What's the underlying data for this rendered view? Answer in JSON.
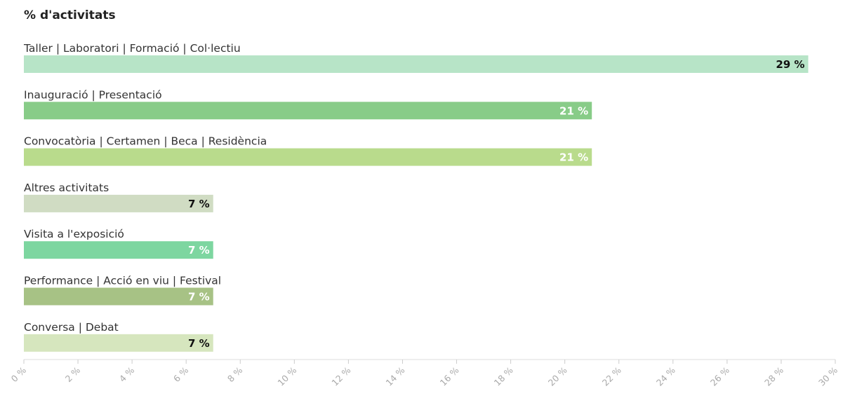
{
  "chart_data": {
    "type": "bar",
    "orientation": "horizontal",
    "title": "% d'activitats",
    "categories": [
      "Taller | Laboratori | Formació | Col·lectiu",
      "Inauguració | Presentació",
      "Convocatòria | Certamen | Beca | Residència",
      "Altres activitats",
      "Visita a l'exposició",
      "Performance | Acció en viu | Festival",
      "Conversa | Debat"
    ],
    "values": [
      29,
      21,
      21,
      7,
      7,
      7,
      7
    ],
    "value_labels": [
      "29 %",
      "21 %",
      "21 %",
      "7 %",
      "7 %",
      "7 %",
      "7 %"
    ],
    "bar_colors": [
      "#b7e4c7",
      "#88cc88",
      "#b9db8c",
      "#d0dcc3",
      "#7dd6a0",
      "#a7c285",
      "#d6e6be"
    ],
    "label_colors": [
      "#111111",
      "#ffffff",
      "#ffffff",
      "#111111",
      "#ffffff",
      "#ffffff",
      "#111111"
    ],
    "xlim": [
      0,
      30
    ],
    "xticks": [
      0,
      2,
      4,
      6,
      8,
      10,
      12,
      14,
      16,
      18,
      20,
      22,
      24,
      26,
      28,
      30
    ],
    "xtick_labels": [
      "0 %",
      "2 %",
      "4 %",
      "6 %",
      "8 %",
      "10 %",
      "12 %",
      "14 %",
      "16 %",
      "18 %",
      "20 %",
      "22 %",
      "24 %",
      "26 %",
      "28 %",
      "30 %"
    ],
    "grid": false,
    "legend": "none"
  }
}
